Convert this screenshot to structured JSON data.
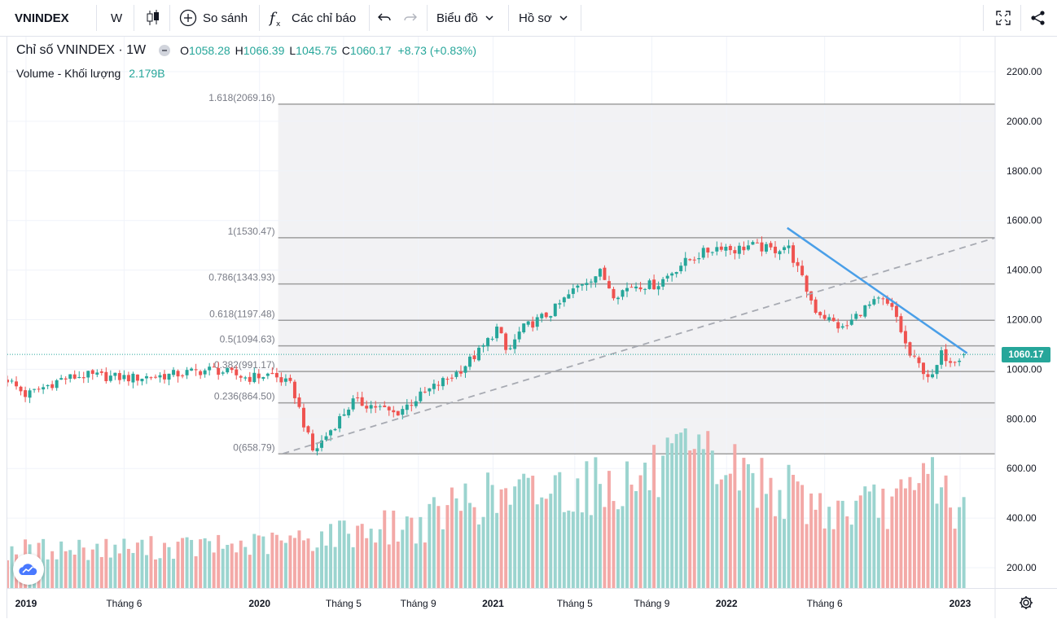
{
  "toolbar": {
    "symbol": "VNINDEX",
    "interval": "W",
    "compare_label": "So sánh",
    "indicators_label": "Các chỉ báo",
    "chart_menu_label": "Biểu đồ",
    "profile_menu_label": "Hồ sơ"
  },
  "legend": {
    "title": "Chỉ số VNINDEX · 1W",
    "open_label": "O",
    "open": "1058.28",
    "high_label": "H",
    "high": "1066.39",
    "low_label": "L",
    "low": "1045.75",
    "close_label": "C",
    "close": "1060.17",
    "change": "+8.73 (+0.83%)",
    "volume_label": "Volume - Khối lượng",
    "volume_value": "2.179B"
  },
  "price_tag": "1060.17",
  "colors": {
    "up": "#26a69a",
    "down": "#ef5350",
    "vol_up": "#9bd4cf",
    "vol_down": "#f3a9a7",
    "trend": "#4a9fe8",
    "fib": "#9e9e9e"
  },
  "chart_data": {
    "type": "candlestick",
    "symbol": "VNINDEX",
    "interval": "1W",
    "y_axis": {
      "min": 150,
      "max": 2300,
      "ticks": [
        200,
        400,
        600,
        800,
        1000,
        1200,
        1400,
        1600,
        1800,
        2000,
        2200
      ],
      "tick_labels": [
        "200.00",
        "400.00",
        "600.00",
        "800.00",
        "1000.00",
        "1200.00",
        "1400.00",
        "1600.00",
        "1800.00",
        "2000.00",
        "2200.00"
      ]
    },
    "x_axis": {
      "labels": [
        "2019",
        "Tháng 6",
        "2020",
        "Tháng 5",
        "Tháng 9",
        "2021",
        "Tháng 5",
        "Tháng 9",
        "2022",
        "Tháng 6",
        "2023"
      ],
      "label_dates": [
        2019.0,
        2019.42,
        2020.0,
        2020.36,
        2020.68,
        2021.0,
        2021.35,
        2021.68,
        2022.0,
        2022.42,
        2023.0
      ],
      "range": [
        2018.92,
        2023.15
      ]
    },
    "fibonacci": [
      {
        "label": "0(658.79)",
        "level": 658.79
      },
      {
        "label": "0.236(864.50)",
        "level": 864.5
      },
      {
        "label": "0.382(991.17)",
        "level": 991.17
      },
      {
        "label": "0.5(1094.63)",
        "level": 1094.63
      },
      {
        "label": "0.618(1197.48)",
        "level": 1197.48
      },
      {
        "label": "0.786(1343.93)",
        "level": 1343.93
      },
      {
        "label": "1(1530.47)",
        "level": 1530.47
      },
      {
        "label": "1.618(2069.16)",
        "level": 2069.16
      }
    ],
    "fib_start_date": 2020.08,
    "trendlines": [
      {
        "style": "dashed",
        "from": [
          2020.1,
          660
        ],
        "to": [
          2023.15,
          1530
        ]
      },
      {
        "style": "solid",
        "from": [
          2022.26,
          1570
        ],
        "to": [
          2023.03,
          1065
        ]
      }
    ],
    "price_anchors": [
      [
        2018.92,
        960
      ],
      [
        2019.0,
        895
      ],
      [
        2019.15,
        960
      ],
      [
        2019.25,
        975
      ],
      [
        2019.45,
        965
      ],
      [
        2019.6,
        975
      ],
      [
        2019.8,
        1000
      ],
      [
        2019.95,
        965
      ],
      [
        2020.05,
        980
      ],
      [
        2020.14,
        930
      ],
      [
        2020.2,
        750
      ],
      [
        2020.23,
        665
      ],
      [
        2020.3,
        750
      ],
      [
        2020.4,
        870
      ],
      [
        2020.5,
        850
      ],
      [
        2020.58,
        820
      ],
      [
        2020.7,
        900
      ],
      [
        2020.85,
        990
      ],
      [
        2020.95,
        1080
      ],
      [
        2021.02,
        1170
      ],
      [
        2021.06,
        1060
      ],
      [
        2021.12,
        1160
      ],
      [
        2021.25,
        1230
      ],
      [
        2021.38,
        1350
      ],
      [
        2021.46,
        1390
      ],
      [
        2021.52,
        1300
      ],
      [
        2021.6,
        1340
      ],
      [
        2021.7,
        1340
      ],
      [
        2021.8,
        1420
      ],
      [
        2021.9,
        1470
      ],
      [
        2021.98,
        1500
      ],
      [
        2022.03,
        1480
      ],
      [
        2022.1,
        1500
      ],
      [
        2022.2,
        1480
      ],
      [
        2022.26,
        1500
      ],
      [
        2022.32,
        1370
      ],
      [
        2022.38,
        1240
      ],
      [
        2022.44,
        1200
      ],
      [
        2022.5,
        1160
      ],
      [
        2022.58,
        1240
      ],
      [
        2022.66,
        1280
      ],
      [
        2022.72,
        1230
      ],
      [
        2022.78,
        1060
      ],
      [
        2022.84,
        1000
      ],
      [
        2022.88,
        960
      ],
      [
        2022.92,
        1060
      ],
      [
        2022.96,
        1040
      ],
      [
        2023.02,
        1060.17
      ]
    ],
    "volume_anchors": [
      [
        2018.92,
        180
      ],
      [
        2019.5,
        190
      ],
      [
        2019.95,
        200
      ],
      [
        2020.2,
        230
      ],
      [
        2020.45,
        280
      ],
      [
        2020.7,
        300
      ],
      [
        2020.9,
        430
      ],
      [
        2021.05,
        420
      ],
      [
        2021.3,
        480
      ],
      [
        2021.6,
        500
      ],
      [
        2021.8,
        580
      ],
      [
        2021.95,
        590
      ],
      [
        2022.2,
        480
      ],
      [
        2022.45,
        360
      ],
      [
        2022.6,
        380
      ],
      [
        2022.8,
        420
      ],
      [
        2022.88,
        580
      ],
      [
        2022.93,
        450
      ],
      [
        2023.02,
        330
      ]
    ],
    "last_bar": {
      "open": 1058.28,
      "high": 1066.39,
      "low": 1045.75,
      "close": 1060.17,
      "change": 8.73,
      "change_pct": 0.83,
      "volume": "2.179B"
    }
  }
}
